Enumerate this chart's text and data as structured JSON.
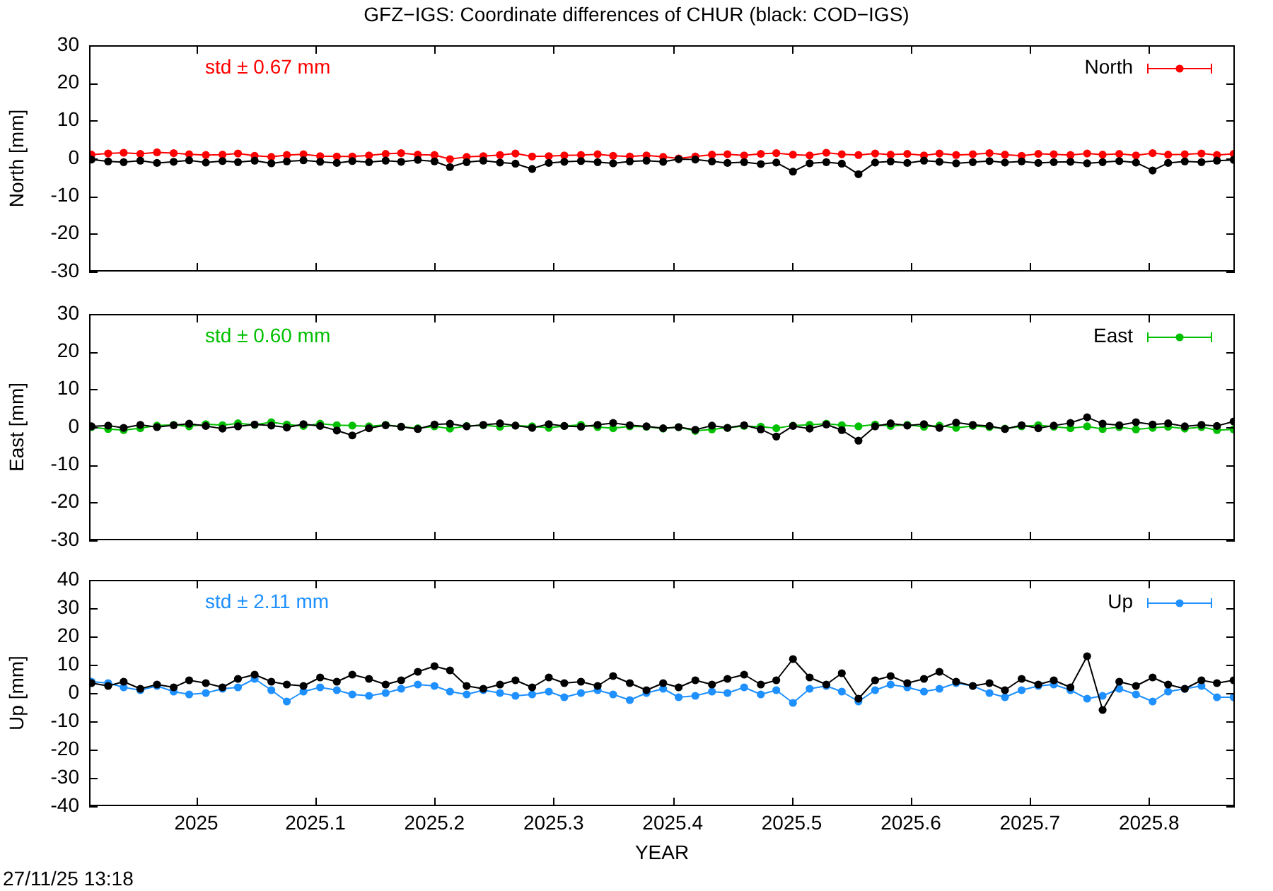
{
  "chart_data": [
    {
      "type": "line",
      "title": "GFZ−IGS: Coordinate differences of CHUR (black: COD−IGS)",
      "ylabel": "North [mm]",
      "annotations": [
        "std ± 0.67 mm"
      ],
      "legend": "top right",
      "marker": "circle",
      "tick_labels": "y",
      "xlim": [
        2024.91,
        2025.872
      ],
      "xticks": [
        2025,
        2025.1,
        2025.2,
        2025.3,
        2025.4,
        2025.5,
        2025.6,
        2025.7,
        2025.8
      ],
      "ylim": [
        -30,
        30
      ],
      "yticks": [
        -30,
        -20,
        -10,
        0,
        10,
        20,
        30
      ],
      "x": [
        2024.912,
        2024.926,
        2024.939,
        2024.953,
        2024.967,
        2024.981,
        2024.994,
        2025.008,
        2025.022,
        2025.035,
        2025.049,
        2025.063,
        2025.076,
        2025.09,
        2025.104,
        2025.118,
        2025.131,
        2025.145,
        2025.159,
        2025.172,
        2025.186,
        2025.2,
        2025.213,
        2025.227,
        2025.241,
        2025.255,
        2025.268,
        2025.282,
        2025.296,
        2025.309,
        2025.323,
        2025.337,
        2025.35,
        2025.364,
        2025.378,
        2025.392,
        2025.405,
        2025.419,
        2025.433,
        2025.446,
        2025.46,
        2025.474,
        2025.487,
        2025.501,
        2025.515,
        2025.529,
        2025.542,
        2025.556,
        2025.57,
        2025.583,
        2025.597,
        2025.611,
        2025.624,
        2025.638,
        2025.652,
        2025.666,
        2025.679,
        2025.693,
        2025.707,
        2025.72,
        2025.734,
        2025.748,
        2025.761,
        2025.775,
        2025.789,
        2025.803,
        2025.816,
        2025.83,
        2025.844,
        2025.857,
        2025.871
      ],
      "series": [
        {
          "color": "#000000",
          "values": [
            -0.3,
            -0.8,
            -1.0,
            -0.6,
            -1.2,
            -0.9,
            -0.5,
            -1.1,
            -0.7,
            -1.0,
            -0.6,
            -1.3,
            -0.8,
            -0.5,
            -0.9,
            -1.2,
            -0.7,
            -1.0,
            -0.6,
            -0.9,
            -0.4,
            -0.8,
            -2.3,
            -1.0,
            -0.6,
            -1.1,
            -1.4,
            -2.8,
            -1.2,
            -0.9,
            -0.7,
            -1.0,
            -1.3,
            -0.8,
            -0.6,
            -0.9,
            -0.2,
            -0.3,
            -0.8,
            -1.2,
            -1.0,
            -1.5,
            -1.1,
            -3.5,
            -1.3,
            -1.0,
            -1.4,
            -4.2,
            -1.1,
            -0.8,
            -1.2,
            -0.6,
            -0.9,
            -1.3,
            -1.0,
            -0.7,
            -1.1,
            -0.8,
            -1.2,
            -1.0,
            -0.9,
            -1.3,
            -1.0,
            -0.7,
            -1.1,
            -3.2,
            -1.2,
            -0.8,
            -1.0,
            -0.6,
            -0.4
          ]
        },
        {
          "name": "North",
          "color": "#ff0000",
          "values": [
            1.0,
            1.3,
            1.5,
            1.2,
            1.6,
            1.4,
            1.1,
            0.9,
            1.0,
            1.3,
            0.7,
            0.4,
            0.9,
            1.1,
            0.6,
            0.5,
            0.5,
            0.8,
            1.2,
            1.4,
            1.0,
            0.9,
            -0.2,
            0.4,
            0.6,
            0.9,
            1.3,
            0.5,
            0.6,
            0.8,
            0.9,
            1.1,
            0.7,
            0.5,
            0.8,
            0.4,
            0.0,
            0.5,
            1.0,
            1.1,
            0.8,
            1.2,
            1.4,
            1.0,
            0.8,
            1.5,
            1.1,
            0.9,
            1.3,
            1.0,
            1.2,
            0.8,
            1.3,
            0.9,
            1.1,
            1.4,
            1.0,
            0.7,
            1.2,
            1.1,
            0.9,
            1.3,
            1.0,
            1.2,
            0.8,
            1.4,
            1.0,
            1.1,
            1.3,
            0.9,
            1.2
          ]
        }
      ]
    },
    {
      "type": "line",
      "ylabel": "East [mm]",
      "annotations": [
        "std ± 0.60 mm"
      ],
      "legend": "top right",
      "marker": "circle",
      "tick_labels": "y",
      "xlim": [
        2024.91,
        2025.872
      ],
      "xticks": [
        2025,
        2025.1,
        2025.2,
        2025.3,
        2025.4,
        2025.5,
        2025.6,
        2025.7,
        2025.8
      ],
      "ylim": [
        -30,
        30
      ],
      "yticks": [
        -30,
        -20,
        -10,
        0,
        10,
        20,
        30
      ],
      "x": [
        2024.912,
        2024.926,
        2024.939,
        2024.953,
        2024.967,
        2024.981,
        2024.994,
        2025.008,
        2025.022,
        2025.035,
        2025.049,
        2025.063,
        2025.076,
        2025.09,
        2025.104,
        2025.118,
        2025.131,
        2025.145,
        2025.159,
        2025.172,
        2025.186,
        2025.2,
        2025.213,
        2025.227,
        2025.241,
        2025.255,
        2025.268,
        2025.282,
        2025.296,
        2025.309,
        2025.323,
        2025.337,
        2025.35,
        2025.364,
        2025.378,
        2025.392,
        2025.405,
        2025.419,
        2025.433,
        2025.446,
        2025.46,
        2025.474,
        2025.487,
        2025.501,
        2025.515,
        2025.529,
        2025.542,
        2025.556,
        2025.57,
        2025.583,
        2025.597,
        2025.611,
        2025.624,
        2025.638,
        2025.652,
        2025.666,
        2025.679,
        2025.693,
        2025.707,
        2025.72,
        2025.734,
        2025.748,
        2025.761,
        2025.775,
        2025.789,
        2025.803,
        2025.816,
        2025.83,
        2025.844,
        2025.857,
        2025.871
      ],
      "series": [
        {
          "color": "#000000",
          "values": [
            0.2,
            0.4,
            -0.2,
            0.6,
            0.0,
            0.5,
            0.9,
            0.3,
            -0.4,
            0.2,
            0.7,
            0.4,
            -0.1,
            0.8,
            0.3,
            -0.9,
            -2.2,
            -0.3,
            0.5,
            0.1,
            -0.5,
            0.7,
            0.9,
            0.2,
            0.6,
            1.0,
            0.4,
            -0.2,
            0.8,
            0.3,
            0.1,
            0.6,
            1.1,
            0.5,
            0.2,
            -0.3,
            0.0,
            -0.7,
            0.4,
            -0.2,
            0.5,
            -0.6,
            -2.5,
            0.3,
            -0.4,
            0.7,
            -0.8,
            -3.6,
            0.2,
            1.0,
            0.4,
            0.8,
            -0.2,
            1.2,
            0.6,
            0.3,
            -0.5,
            0.5,
            -0.3,
            0.4,
            1.1,
            2.6,
            0.9,
            0.5,
            1.3,
            0.7,
            1.0,
            0.2,
            0.6,
            0.3,
            1.5
          ]
        },
        {
          "name": "East",
          "color": "#00c000",
          "values": [
            0.0,
            -0.5,
            -0.8,
            -0.3,
            0.4,
            0.6,
            0.2,
            0.8,
            0.5,
            1.0,
            0.6,
            1.3,
            0.7,
            0.3,
            0.9,
            0.5,
            0.4,
            0.2,
            0.6,
            0.1,
            -0.3,
            0.2,
            -0.4,
            0.3,
            0.5,
            0.1,
            0.4,
            0.2,
            -0.2,
            0.3,
            0.6,
            0.0,
            -0.3,
            0.2,
            0.1,
            -0.4,
            0.0,
            -1.0,
            -0.6,
            -0.2,
            0.3,
            0.1,
            -0.3,
            0.4,
            0.6,
            0.9,
            0.5,
            0.2,
            0.7,
            0.3,
            0.6,
            0.1,
            0.4,
            -0.2,
            0.3,
            0.0,
            -0.4,
            0.2,
            0.5,
            0.1,
            -0.3,
            0.2,
            -0.5,
            0.0,
            -0.6,
            -0.2,
            0.1,
            -0.4,
            0.0,
            -0.8,
            -0.6
          ]
        }
      ]
    },
    {
      "type": "line",
      "xlabel": "YEAR",
      "ylabel": "Up [mm]",
      "annotations": [
        "std ± 2.11 mm",
        "27/11/25 13:18"
      ],
      "legend": "top right",
      "marker": "circle",
      "xlim": [
        2024.91,
        2025.872
      ],
      "xticks": [
        2025,
        2025.1,
        2025.2,
        2025.3,
        2025.4,
        2025.5,
        2025.6,
        2025.7,
        2025.8
      ],
      "ylim": [
        -40,
        40
      ],
      "yticks": [
        -40,
        -30,
        -20,
        -10,
        0,
        10,
        20,
        30,
        40
      ],
      "x": [
        2024.912,
        2024.926,
        2024.939,
        2024.953,
        2024.967,
        2024.981,
        2024.994,
        2025.008,
        2025.022,
        2025.035,
        2025.049,
        2025.063,
        2025.076,
        2025.09,
        2025.104,
        2025.118,
        2025.131,
        2025.145,
        2025.159,
        2025.172,
        2025.186,
        2025.2,
        2025.213,
        2025.227,
        2025.241,
        2025.255,
        2025.268,
        2025.282,
        2025.296,
        2025.309,
        2025.323,
        2025.337,
        2025.35,
        2025.364,
        2025.378,
        2025.392,
        2025.405,
        2025.419,
        2025.433,
        2025.446,
        2025.46,
        2025.474,
        2025.487,
        2025.501,
        2025.515,
        2025.529,
        2025.542,
        2025.556,
        2025.57,
        2025.583,
        2025.597,
        2025.611,
        2025.624,
        2025.638,
        2025.652,
        2025.666,
        2025.679,
        2025.693,
        2025.707,
        2025.72,
        2025.734,
        2025.748,
        2025.761,
        2025.775,
        2025.789,
        2025.803,
        2025.816,
        2025.83,
        2025.844,
        2025.857,
        2025.871
      ],
      "series": [
        {
          "color": "#000000",
          "values": [
            3.5,
            2.5,
            4.0,
            1.5,
            3.0,
            2.0,
            4.5,
            3.5,
            2.0,
            5.0,
            6.5,
            4.0,
            3.0,
            2.5,
            5.5,
            4.0,
            6.5,
            5.0,
            3.0,
            4.5,
            7.5,
            9.5,
            8.0,
            2.5,
            1.5,
            3.0,
            4.5,
            2.0,
            5.5,
            3.5,
            4.0,
            2.5,
            6.0,
            3.5,
            1.0,
            3.5,
            2.0,
            4.5,
            3.0,
            5.0,
            6.5,
            3.0,
            4.5,
            12.0,
            5.5,
            3.0,
            7.0,
            -2.0,
            4.5,
            6.0,
            3.5,
            5.0,
            7.5,
            4.0,
            2.5,
            3.5,
            1.0,
            5.0,
            3.0,
            4.5,
            2.0,
            13.0,
            -6.0,
            4.0,
            2.5,
            5.5,
            3.0,
            1.5,
            4.5,
            3.5,
            4.5
          ]
        },
        {
          "name": "Up",
          "color": "#1e90ff",
          "values": [
            4.0,
            3.5,
            2.0,
            1.0,
            2.5,
            0.5,
            -0.5,
            0.0,
            1.5,
            2.0,
            5.0,
            1.0,
            -3.0,
            0.5,
            2.0,
            1.0,
            -0.5,
            -1.0,
            0.0,
            1.5,
            3.0,
            2.5,
            0.5,
            -0.5,
            1.0,
            0.0,
            -1.0,
            -0.5,
            0.5,
            -1.5,
            0.0,
            1.0,
            -0.5,
            -2.5,
            0.0,
            1.5,
            -1.5,
            -1.0,
            0.5,
            0.0,
            2.0,
            -0.5,
            1.0,
            -3.5,
            1.5,
            2.5,
            0.5,
            -3.0,
            1.0,
            3.0,
            2.0,
            0.5,
            1.5,
            3.5,
            2.5,
            0.0,
            -1.5,
            1.0,
            2.5,
            3.0,
            1.0,
            -2.0,
            -1.0,
            1.5,
            -0.5,
            -3.0,
            0.5,
            1.5,
            2.5,
            -1.5,
            -1.5
          ]
        }
      ]
    }
  ]
}
